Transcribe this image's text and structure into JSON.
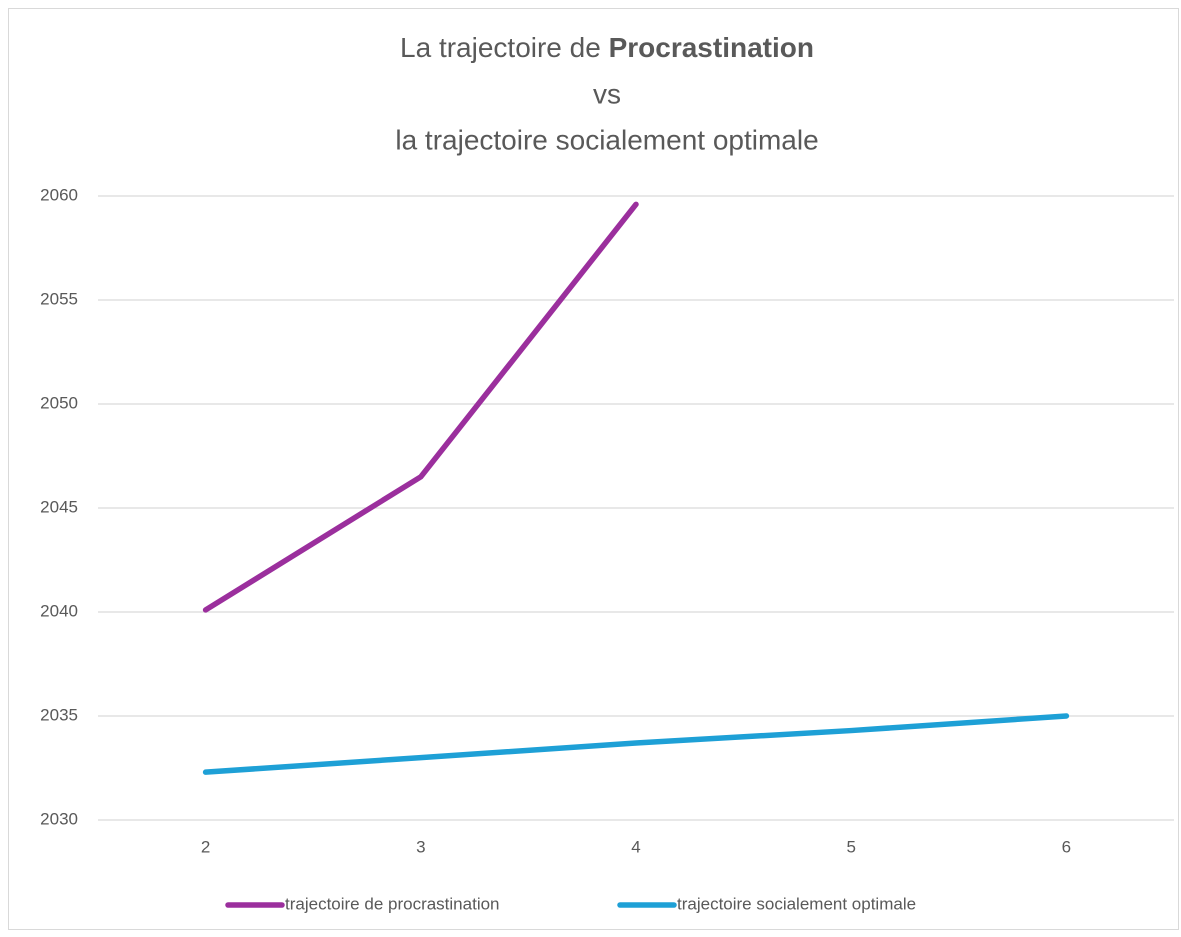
{
  "chart_data": {
    "type": "line",
    "title": [
      "La trajectoire de",
      "Procrastination",
      "vs",
      "la trajectoire socialement optimale"
    ],
    "categories": [
      "2",
      "3",
      "4",
      "5",
      "6"
    ],
    "series": [
      {
        "name": "trajectoire de procrastination",
        "color": "#9b2f9d",
        "values": [
          2040.1,
          2046.5,
          2059.6,
          null,
          null
        ]
      },
      {
        "name": "trajectoire socialement optimale",
        "color": "#1ea0d6",
        "values": [
          2032.3,
          2033.0,
          2033.7,
          2034.3,
          2035.0
        ]
      }
    ],
    "ylim": [
      2030,
      2060
    ],
    "yticks": [
      2030,
      2035,
      2040,
      2045,
      2050,
      2055,
      2060
    ],
    "grid": true
  }
}
